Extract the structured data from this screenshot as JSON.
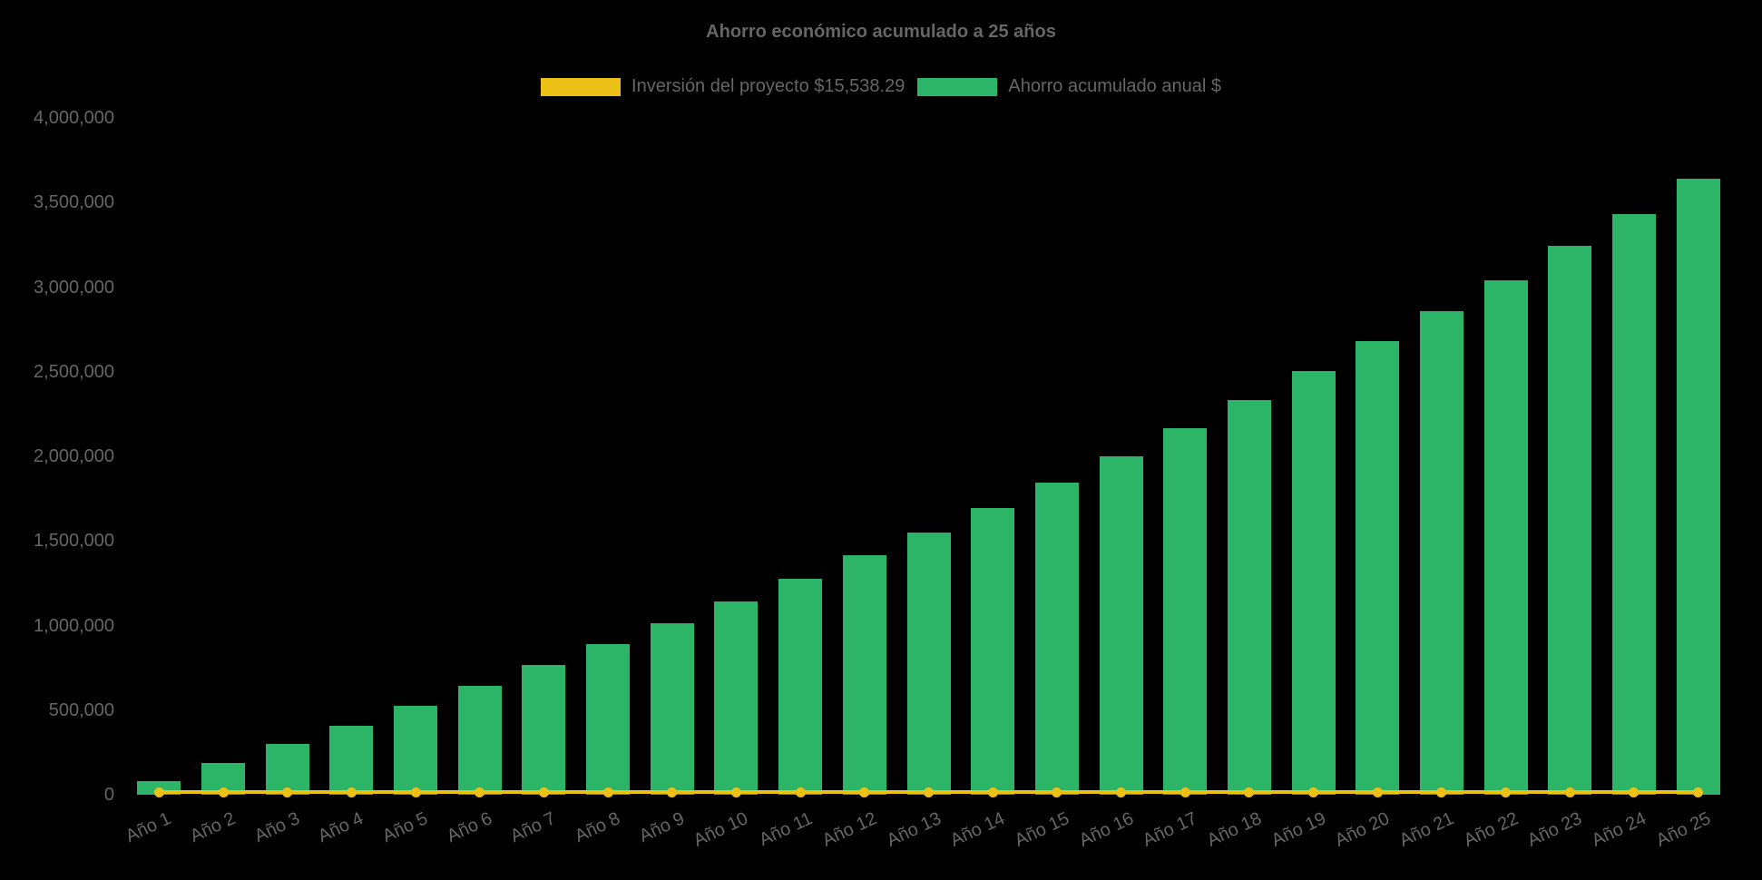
{
  "title": "Ahorro económico acumulado a 25 años",
  "colors": {
    "background": "#000000",
    "text": "#666666",
    "bar": "#2db567",
    "line": "#ecc117"
  },
  "legend": {
    "items": [
      {
        "label": "Inversión del proyecto $15,538.29",
        "color": "#ecc117",
        "series_type": "line"
      },
      {
        "label": "Ahorro acumulado anual $",
        "color": "#2db567",
        "series_type": "bar"
      }
    ]
  },
  "chart_data": {
    "type": "bar",
    "title": "Ahorro económico acumulado a 25 años",
    "xlabel": "",
    "ylabel": "",
    "ylim": [
      0,
      4000000
    ],
    "grid": false,
    "legend_position": "top",
    "categories": [
      "Año 1",
      "Año 2",
      "Año 3",
      "Año 4",
      "Año 5",
      "Año 6",
      "Año 7",
      "Año 8",
      "Año 9",
      "Año 10",
      "Año 11",
      "Año 12",
      "Año 13",
      "Año 14",
      "Año 15",
      "Año 16",
      "Año 17",
      "Año 18",
      "Año 19",
      "Año 20",
      "Año 21",
      "Año 22",
      "Año 23",
      "Año 24",
      "Año 25"
    ],
    "yticks": {
      "values": [
        0,
        500000,
        1000000,
        1500000,
        2000000,
        2500000,
        3000000,
        3500000,
        4000000
      ],
      "labels": [
        "0",
        "500,000",
        "1,000,000",
        "1,500,000",
        "2,000,000",
        "2,500,000",
        "3,000,000",
        "3,500,000",
        "4,000,000"
      ]
    },
    "series": [
      {
        "name": "Inversión del proyecto $15,538.29",
        "type": "line",
        "color": "#ecc117",
        "constant_value": 15538.29,
        "values": [
          15538.29,
          15538.29,
          15538.29,
          15538.29,
          15538.29,
          15538.29,
          15538.29,
          15538.29,
          15538.29,
          15538.29,
          15538.29,
          15538.29,
          15538.29,
          15538.29,
          15538.29,
          15538.29,
          15538.29,
          15538.29,
          15538.29,
          15538.29,
          15538.29,
          15538.29,
          15538.29,
          15538.29,
          15538.29
        ]
      },
      {
        "name": "Ahorro acumulado anual $",
        "type": "bar",
        "color": "#2db567",
        "values": [
          80000,
          190000,
          300000,
          410000,
          525000,
          645000,
          765000,
          890000,
          1015000,
          1140000,
          1275000,
          1415000,
          1550000,
          1695000,
          1845000,
          2000000,
          2165000,
          2335000,
          2505000,
          2680000,
          2860000,
          3040000,
          3245000,
          3430000,
          3640000
        ]
      }
    ]
  }
}
